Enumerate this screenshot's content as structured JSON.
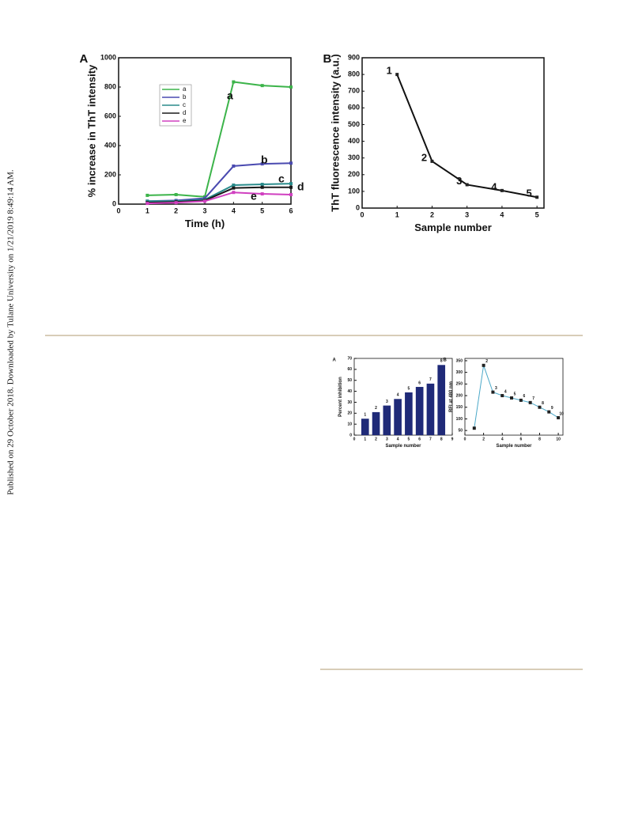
{
  "sidebar": "Published on 29 October 2018. Downloaded by Tulane University on 1/21/2019 8:49:14 AM.",
  "chart_data": [
    {
      "type": "line",
      "panel": "A",
      "x_label": "Time (h)",
      "y_label": "% increase in ThT intensity",
      "xlim": [
        0,
        6
      ],
      "ylim": [
        0,
        1000
      ],
      "xticks": [
        0,
        1,
        2,
        3,
        4,
        5,
        6
      ],
      "yticks": [
        0,
        200,
        400,
        600,
        800,
        1000
      ],
      "x": [
        1,
        2,
        3,
        4,
        5,
        6
      ],
      "series": [
        {
          "name": "a",
          "color": "#3cb44a",
          "values": [
            60,
            65,
            50,
            835,
            810,
            800
          ]
        },
        {
          "name": "b",
          "color": "#4a4ab0",
          "values": [
            20,
            25,
            40,
            260,
            275,
            280
          ]
        },
        {
          "name": "c",
          "color": "#2a8c8c",
          "values": [
            20,
            20,
            30,
            130,
            135,
            140
          ]
        },
        {
          "name": "d",
          "color": "#1a1a1a",
          "values": [
            10,
            15,
            25,
            110,
            115,
            115
          ]
        },
        {
          "name": "e",
          "color": "#d040c0",
          "values": [
            5,
            10,
            20,
            80,
            70,
            65
          ]
        }
      ]
    },
    {
      "type": "line",
      "panel": "B",
      "x_label": "Sample number",
      "y_label": "ThT fluorescence intensity (a.u.)",
      "xlim": [
        0,
        5.2
      ],
      "ylim": [
        0,
        900
      ],
      "xticks": [
        0,
        1,
        2,
        3,
        4,
        5
      ],
      "yticks": [
        0,
        100,
        200,
        300,
        400,
        500,
        600,
        700,
        800,
        900
      ],
      "x": [
        1,
        2,
        3,
        4,
        5
      ],
      "values": [
        800,
        280,
        140,
        105,
        65
      ],
      "color": "#111111",
      "point_labels": [
        "1",
        "2",
        "3",
        "4",
        "5"
      ]
    },
    {
      "type": "bar",
      "panel": "A",
      "x_label": "Sample number",
      "y_label": "Percent inhibition",
      "xlim": [
        0,
        9
      ],
      "ylim": [
        0,
        70
      ],
      "xticks": [
        0,
        1,
        2,
        3,
        4,
        5,
        6,
        7,
        8,
        9
      ],
      "yticks": [
        0,
        10,
        20,
        30,
        40,
        50,
        60,
        70
      ],
      "x": [
        1,
        2,
        3,
        4,
        5,
        6,
        7,
        8
      ],
      "values": [
        15,
        21,
        27,
        33,
        39,
        44,
        47,
        64
      ],
      "color": "#1f2a78",
      "point_labels": [
        "1",
        "2",
        "3",
        "4",
        "5",
        "6",
        "7",
        "8"
      ]
    },
    {
      "type": "line",
      "panel": "B",
      "x_label": "Sample number",
      "y_label": "RFI at 480 nm",
      "xlim": [
        0,
        10.5
      ],
      "ylim": [
        30,
        360
      ],
      "xticks": [
        0,
        2,
        4,
        6,
        8,
        10
      ],
      "yticks": [
        50,
        100,
        150,
        200,
        250,
        300,
        350
      ],
      "x": [
        1,
        2,
        3,
        4,
        5,
        6,
        7,
        8,
        9,
        10
      ],
      "values": [
        60,
        330,
        215,
        200,
        190,
        180,
        170,
        150,
        130,
        105
      ],
      "color": "#4aa8c8",
      "point_labels": [
        null,
        "2",
        "3",
        "4",
        "5",
        "6",
        "7",
        "8",
        "9",
        "10"
      ]
    }
  ]
}
